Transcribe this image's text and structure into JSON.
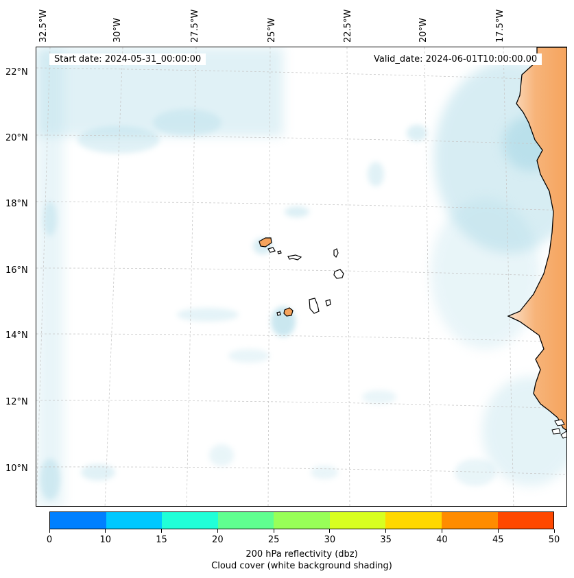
{
  "map": {
    "start_date": "Start date: 2024-05-31_00:00:00",
    "valid_date": "Valid_date: 2024-06-01T10:00:00.00",
    "longitude_labels": [
      "32.5°W",
      "30°W",
      "27.5°W",
      "25°W",
      "22.5°W",
      "20°W",
      "17.5°W"
    ],
    "latitude_labels": [
      "22°N",
      "20°N",
      "18°N",
      "16°N",
      "14°N",
      "12°N",
      "10°N"
    ],
    "colors": {
      "land": "#f5a35c",
      "cloud_shading": "#a8d8e6",
      "gridline": "#c8c8c8",
      "coastline": "#000000"
    }
  },
  "colorbar": {
    "ticks": [
      "0",
      "10",
      "15",
      "20",
      "25",
      "30",
      "35",
      "40",
      "45",
      "50"
    ],
    "colors": [
      "#0080ff",
      "#00c8ff",
      "#20ffd8",
      "#60ff90",
      "#98ff58",
      "#d8ff20",
      "#ffd800",
      "#ff8c00",
      "#ff4800"
    ],
    "label_line1": "200 hPa reflectivity (dbz)",
    "label_line2": "Cloud cover (white background shading)"
  }
}
